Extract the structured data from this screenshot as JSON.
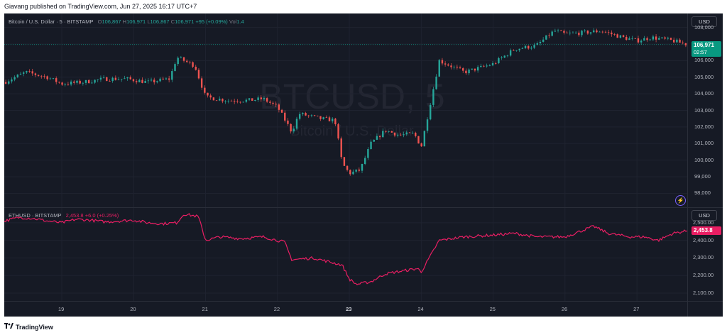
{
  "header": {
    "published_text": "Giavang published on TradingView.com, Jun 27, 2025 16:17 UTC+7"
  },
  "main_pane": {
    "legend": {
      "symbol_text": "Bitcoin / U.S. Dollar · 5 · BITSTAMP",
      "open_label": "O",
      "open": "106,867",
      "high_label": "H",
      "high": "106,971",
      "low_label": "L",
      "low": "106,867",
      "close_label": "C",
      "close": "106,971",
      "change": "+95 (+0.09%)",
      "vol_label": "Vol",
      "vol": "1.4"
    },
    "watermark_title": "BTCUSD, 5",
    "watermark_subtitle": "Bitcoin / U.S. Dollar",
    "currency_button": "USD",
    "price_axis": [
      "108,000",
      "107,000",
      "106,000",
      "105,000",
      "104,000",
      "103,000",
      "102,000",
      "101,000",
      "100,000",
      "99,000",
      "98,000"
    ],
    "last_price": "106,971",
    "countdown": "02:57",
    "last_price_color": "#089981"
  },
  "eth_pane": {
    "legend": {
      "symbol_text": "ETHUSD · BITSTAMP",
      "value": "2,453.8",
      "change": "+6.0 (+0.25%)"
    },
    "currency_button": "USD",
    "price_axis": [
      "2,500.00",
      "2,400.00",
      "2,300.00",
      "2,200.00",
      "2,100.00"
    ],
    "last_price": "2,453.8",
    "line_color": "#e91e63"
  },
  "time_axis": [
    "19",
    "20",
    "21",
    "22",
    "23",
    "24",
    "25",
    "26",
    "27"
  ],
  "footer": {
    "brand": "TradingView"
  },
  "chart_data": [
    {
      "type": "candlestick",
      "title": "Bitcoin / U.S. Dollar · 5 · BITSTAMP",
      "x_ticks": [
        "19",
        "20",
        "21",
        "22",
        "23",
        "24",
        "25",
        "26",
        "27"
      ],
      "ylim": [
        97500,
        108500
      ],
      "x": [
        18.2,
        18.5,
        18.8,
        19.0,
        19.3,
        19.6,
        19.9,
        20.2,
        20.5,
        20.6,
        20.7,
        20.85,
        21.0,
        21.3,
        21.6,
        21.8,
        22.0,
        22.2,
        22.3,
        22.6,
        22.8,
        22.9,
        23.0,
        23.15,
        23.3,
        23.5,
        23.7,
        23.9,
        24.0,
        24.25,
        24.6,
        25.0,
        25.3,
        25.6,
        25.85,
        26.0,
        26.3,
        26.5,
        26.8,
        27.0,
        27.2,
        27.5,
        27.7
      ],
      "values": [
        104700,
        105300,
        105000,
        104600,
        104700,
        104900,
        104900,
        104700,
        104900,
        106200,
        106000,
        105700,
        103800,
        103600,
        103600,
        103700,
        103200,
        101700,
        102800,
        102500,
        102400,
        99800,
        99200,
        99400,
        101000,
        101800,
        101500,
        101600,
        100800,
        106000,
        105300,
        105800,
        106700,
        106900,
        107800,
        107600,
        107700,
        107800,
        107400,
        107200,
        107400,
        107200,
        106971
      ],
      "last": 106971
    },
    {
      "type": "line",
      "title": "ETHUSD · BITSTAMP",
      "x_ticks": [
        "19",
        "20",
        "21",
        "22",
        "23",
        "24",
        "25",
        "26",
        "27"
      ],
      "ylim": [
        2080,
        2560
      ],
      "x": [
        18.2,
        18.4,
        18.6,
        18.8,
        19.0,
        19.2,
        19.4,
        19.6,
        19.8,
        20.0,
        20.2,
        20.4,
        20.6,
        20.7,
        20.9,
        21.0,
        21.2,
        21.5,
        21.8,
        22.0,
        22.1,
        22.2,
        22.5,
        22.8,
        22.9,
        23.0,
        23.1,
        23.3,
        23.5,
        23.8,
        23.95,
        24.0,
        24.25,
        24.6,
        25.0,
        25.3,
        25.6,
        26.0,
        26.2,
        26.4,
        26.6,
        26.9,
        27.1,
        27.3,
        27.5,
        27.7
      ],
      "values": [
        2510,
        2530,
        2525,
        2510,
        2500,
        2520,
        2515,
        2505,
        2510,
        2515,
        2500,
        2495,
        2500,
        2550,
        2535,
        2400,
        2420,
        2410,
        2420,
        2400,
        2390,
        2290,
        2300,
        2270,
        2260,
        2180,
        2150,
        2165,
        2210,
        2230,
        2240,
        2220,
        2400,
        2420,
        2430,
        2440,
        2420,
        2420,
        2450,
        2480,
        2440,
        2420,
        2420,
        2400,
        2440,
        2453.8
      ],
      "last": 2453.8
    }
  ]
}
